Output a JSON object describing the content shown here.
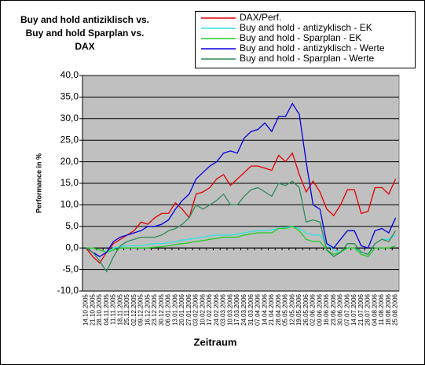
{
  "chart_data": {
    "type": "line",
    "title": [
      "Buy and hold antiziklisch vs.",
      "Buy and hold Sparplan vs.",
      "DAX"
    ],
    "x_label": "Zeitraum",
    "y_label": "Performance in %",
    "categories": [
      "14.10.2005",
      "21.10.2005",
      "28.10.2005",
      "04.11.2005",
      "11.11.2005",
      "18.11.2005",
      "25.11.2005",
      "02.12.2005",
      "09.12.2005",
      "16.12.2005",
      "23.12.2005",
      "30.12.2005",
      "06.01.2006",
      "13.01.2006",
      "20.01.2006",
      "27.01.2006",
      "03.02.2006",
      "10.02.2006",
      "17.02.2006",
      "24.02.2006",
      "03.03.2006",
      "10.03.2006",
      "17.03.2006",
      "24.03.2006",
      "31.03.2006",
      "07.04.2006",
      "14.04.2006",
      "21.04.2006",
      "28.04.2006",
      "05.05.2006",
      "12.05.2006",
      "19.05.2006",
      "26.05.2006",
      "02.06.2006",
      "09.06.2006",
      "16.06.2006",
      "23.06.2006",
      "30.06.2006",
      "07.07.2006",
      "14.07.2006",
      "21.07.2006",
      "28.07.2006",
      "04.08.2006",
      "11.08.2006",
      "18.08.2006",
      "25.08.2006"
    ],
    "series": [
      {
        "name": "DAX/Perf.",
        "color": "#e00000",
        "values": [
          0,
          -2,
          -3.5,
          -1,
          1,
          2,
          3,
          4,
          6,
          5.5,
          7,
          8,
          8,
          10.5,
          9,
          7,
          12.5,
          13,
          14,
          16,
          17,
          14.5,
          16,
          17.5,
          19,
          19,
          18.5,
          18,
          21.5,
          20,
          22,
          17,
          13,
          15.5,
          13,
          9,
          7.5,
          10,
          13.5,
          13.5,
          8,
          8.5,
          14,
          14,
          12.5,
          16
        ]
      },
      {
        "name": "Buy and hold  - antizyklisch - EK",
        "color": "#33e0e0",
        "values": [
          0,
          0,
          -0.5,
          -1,
          0,
          0.3,
          0.5,
          0.5,
          0.5,
          0.8,
          1,
          1,
          1.2,
          1.5,
          1.8,
          2,
          2.3,
          2.5,
          2.8,
          3,
          3,
          3,
          3.2,
          3.5,
          3.8,
          4,
          4,
          4.2,
          4.5,
          4.8,
          5,
          4.5,
          3.5,
          3,
          3,
          1,
          -0.5,
          -1,
          0,
          0,
          -1,
          -1.5,
          1,
          2,
          2,
          3
        ]
      },
      {
        "name": "Buy and hold - Sparplan - EK",
        "color": "#22cc22",
        "values": [
          0,
          0,
          -0.5,
          -1,
          -0.5,
          0,
          0,
          0,
          0,
          0,
          0.2,
          0.3,
          0.5,
          0.8,
          1,
          1.2,
          1.5,
          1.7,
          2,
          2.2,
          2.5,
          2.5,
          2.5,
          3,
          3.3,
          3.5,
          3.5,
          3.5,
          4.5,
          4.5,
          5,
          4,
          2,
          1.5,
          1.5,
          -0.5,
          -1.5,
          -1,
          0,
          0,
          -1.5,
          -2,
          0,
          0,
          0,
          0.5
        ]
      },
      {
        "name": "Buy and hold - antizyklisch - Werte",
        "color": "#0000e0",
        "values": [
          0,
          -1,
          -2,
          -1,
          1.5,
          2.5,
          3,
          3.5,
          4,
          5,
          5,
          5.5,
          6.5,
          9,
          11,
          12.5,
          16,
          17.5,
          19,
          20,
          22,
          22.5,
          22,
          25.5,
          27,
          27.5,
          29,
          27,
          30.5,
          30.5,
          33.5,
          31,
          20,
          10,
          9,
          1,
          0,
          2,
          4,
          4,
          0.5,
          0,
          4,
          4.5,
          3.5,
          7
        ]
      },
      {
        "name": "Buy and hold - Sparplan - Werte",
        "color": "#2e8b57",
        "values": [
          0,
          -1,
          -3,
          -5.5,
          -2,
          0.5,
          1.5,
          2,
          2.5,
          2.5,
          2.5,
          3,
          4,
          4.5,
          5.5,
          7,
          10,
          9,
          10,
          11,
          12.5,
          10,
          10,
          12,
          13.5,
          14,
          13,
          12,
          15,
          14.5,
          15.5,
          14,
          6,
          6.5,
          6,
          -0.5,
          -2,
          -1,
          1,
          1,
          -1,
          -1.5,
          1,
          2,
          1.5,
          4
        ]
      }
    ],
    "ylim": [
      -10,
      40
    ],
    "yticks": [
      {
        "value": -10,
        "label": "-10,0"
      },
      {
        "value": -5,
        "label": "-5,0"
      },
      {
        "value": 0,
        "label": "0,0"
      },
      {
        "value": 5,
        "label": "5,0"
      },
      {
        "value": 10,
        "label": "10,0"
      },
      {
        "value": 15,
        "label": "15,0"
      },
      {
        "value": 20,
        "label": "20,0"
      },
      {
        "value": 25,
        "label": "25,0"
      },
      {
        "value": 30,
        "label": "30,0"
      },
      {
        "value": 35,
        "label": "35,0"
      },
      {
        "value": 40,
        "label": "40,0"
      }
    ],
    "grid": true,
    "legend": "top-right"
  }
}
